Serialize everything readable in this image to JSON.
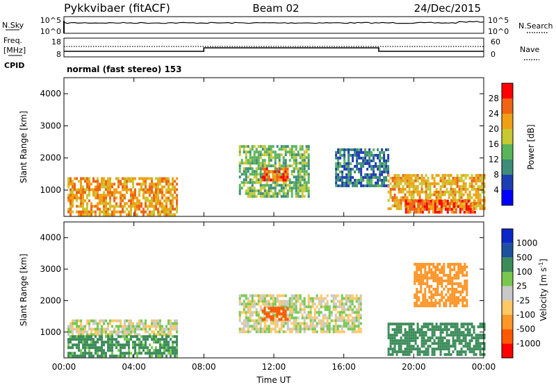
{
  "header": {
    "radar_title": "Pykkvibaer (fitACF)",
    "beam": "Beam 02",
    "date": "24/Dec/2015"
  },
  "noise_panel": {
    "left_label": "N.Sky",
    "left_ticks": [
      "10^5",
      "10^0"
    ],
    "right_label": "N.Search",
    "right_ticks": [
      "10^5",
      "10^0"
    ]
  },
  "freq_panel": {
    "left_label_line1": "Freq.",
    "left_label_line2": "[MHz]",
    "left_ticks": [
      "18",
      "8"
    ],
    "right_label": "Nave",
    "right_ticks": [
      "60",
      "0"
    ],
    "cpid_label": "CPID",
    "cpid_text": "normal (fast stereo) 153"
  },
  "colors": {
    "power_scale": [
      "#0000ff",
      "#1e3cb4",
      "#3c8c78",
      "#5ab45a",
      "#c8c832",
      "#f0a014",
      "#f06414",
      "#ff0000"
    ],
    "velocity_scale": [
      "#ff0000",
      "#ff5a00",
      "#ff9628",
      "#ffc864",
      "#c8c8c8",
      "#78c850",
      "#3c8c5a",
      "#1e50a0",
      "#0a28c8"
    ]
  },
  "chart_data": [
    {
      "type": "heatmap",
      "panel": "power",
      "xlabel": "",
      "ylabel": "Slant Range [km]",
      "xlim": [
        0,
        24
      ],
      "ylim": [
        180,
        4500
      ],
      "y_ticks": [
        1000,
        2000,
        3000,
        4000
      ],
      "colorbar_label": "Power [dB]",
      "colorbar_ticks": [
        4,
        8,
        12,
        16,
        20,
        24,
        28
      ],
      "colorbar_range": [
        0,
        32
      ],
      "echo_regions": [
        {
          "t_start": 0.2,
          "t_end": 6.5,
          "r_start": 250,
          "r_end": 1400,
          "power": 22
        },
        {
          "t_start": 10.0,
          "t_end": 14.0,
          "r_start": 800,
          "r_end": 2400,
          "power": 14
        },
        {
          "t_start": 11.3,
          "t_end": 12.8,
          "r_start": 1300,
          "r_end": 1700,
          "power": 27
        },
        {
          "t_start": 15.5,
          "t_end": 18.5,
          "r_start": 1100,
          "r_end": 2300,
          "power": 9
        },
        {
          "t_start": 18.5,
          "t_end": 24.0,
          "r_start": 400,
          "r_end": 1500,
          "power": 21
        },
        {
          "t_start": 19.5,
          "t_end": 23.5,
          "r_start": 350,
          "r_end": 700,
          "power": 27
        }
      ]
    },
    {
      "type": "heatmap",
      "panel": "velocity",
      "xlabel": "Time UT",
      "ylabel": "Slant Range [km]",
      "xlim": [
        0,
        24
      ],
      "ylim": [
        180,
        4500
      ],
      "x_ticks": [
        "00:00",
        "04:00",
        "08:00",
        "12:00",
        "16:00",
        "20:00",
        "00:00"
      ],
      "y_ticks": [
        1000,
        2000,
        3000,
        4000
      ],
      "colorbar_label": "Velocity [m s",
      "colorbar_label_sup": "-1",
      "colorbar_label_end": "]",
      "colorbar_ticks": [
        "1000",
        "500",
        "100",
        "25",
        "-25",
        "-100",
        "-500",
        "-1000"
      ],
      "echo_regions": [
        {
          "t_start": 0.2,
          "t_end": 6.5,
          "r_start": 900,
          "r_end": 1400,
          "velocity": 0
        },
        {
          "t_start": 0.2,
          "t_end": 6.5,
          "r_start": 250,
          "r_end": 900,
          "velocity": 150
        },
        {
          "t_start": 10.0,
          "t_end": 17.0,
          "r_start": 1000,
          "r_end": 2200,
          "velocity": 0
        },
        {
          "t_start": 11.3,
          "t_end": 12.8,
          "r_start": 1400,
          "r_end": 1800,
          "velocity": -800
        },
        {
          "t_start": 18.5,
          "t_end": 24.0,
          "r_start": 300,
          "r_end": 1300,
          "velocity": 200
        },
        {
          "t_start": 20.0,
          "t_end": 23.0,
          "r_start": 1800,
          "r_end": 3200,
          "velocity": -200
        }
      ]
    }
  ]
}
